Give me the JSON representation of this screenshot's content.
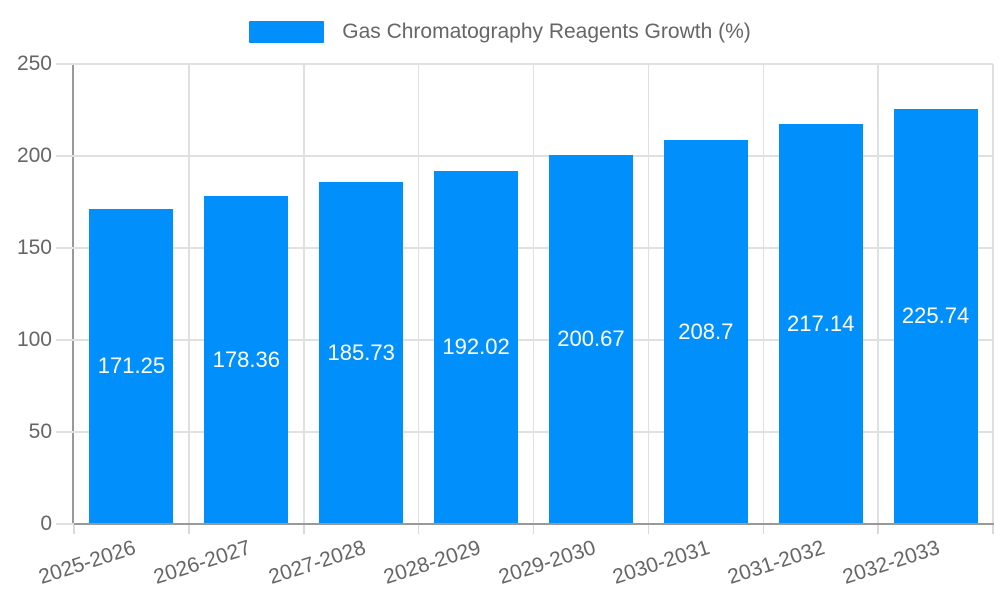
{
  "legend": {
    "label": "Gas Chromatography Reagents Growth (%)"
  },
  "colors": {
    "bar": "#008FFB",
    "axis": "#999999",
    "grid": "#e0e0e0",
    "text": "#666666",
    "value_label": "#ffffff"
  },
  "chart_data": {
    "type": "bar",
    "title": "Gas Chromatography Reagents Growth (%)",
    "categories": [
      "2025-2026",
      "2026-2027",
      "2027-2028",
      "2028-2029",
      "2029-2030",
      "2030-2031",
      "2031-2032",
      "2032-2033"
    ],
    "values": [
      171.25,
      178.36,
      185.73,
      192.02,
      200.67,
      208.7,
      217.14,
      225.74
    ],
    "xlabel": "",
    "ylabel": "",
    "ylim": [
      0,
      250
    ],
    "yticks": [
      0,
      50,
      100,
      150,
      200,
      250
    ],
    "grid": true,
    "legend_position": "top-center",
    "value_labels": "inside-center"
  }
}
